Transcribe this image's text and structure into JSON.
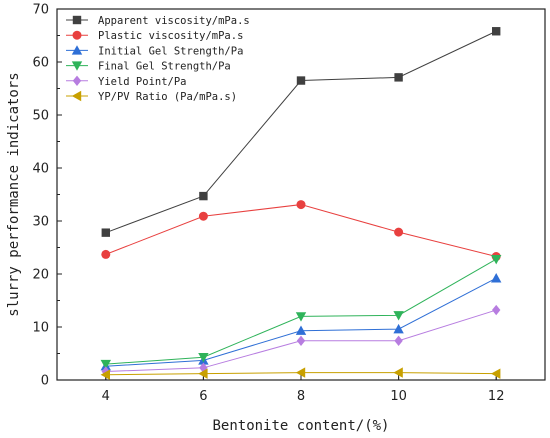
{
  "chart_data": {
    "type": "line",
    "xlabel": "Bentonite content/(%)",
    "ylabel": "slurry performance indicators",
    "x": [
      4,
      6,
      8,
      10,
      12
    ],
    "xlim": [
      3,
      13
    ],
    "ylim": [
      0,
      70
    ],
    "xticks": [
      "4",
      "6",
      "8",
      "10",
      "12"
    ],
    "yticks": [
      "0",
      "10",
      "20",
      "30",
      "40",
      "50",
      "60",
      "70"
    ],
    "grid": false,
    "legend_position": "top-left",
    "series": [
      {
        "name": "Apparent viscosity/mPa.s",
        "marker": "square",
        "color": "#404040",
        "values": [
          27.8,
          34.7,
          56.5,
          57.1,
          65.8
        ]
      },
      {
        "name": "Plastic viscosity/mPa.s",
        "marker": "circle",
        "color": "#e8403f",
        "values": [
          23.7,
          30.9,
          33.1,
          27.9,
          23.3
        ]
      },
      {
        "name": "Initial Gel Strength/Pa",
        "marker": "triangle-up",
        "color": "#2f6fd6",
        "values": [
          2.6,
          3.7,
          9.3,
          9.6,
          19.2
        ]
      },
      {
        "name": "Final Gel Strength/Pa",
        "marker": "triangle-down",
        "color": "#2fb35a",
        "values": [
          3.0,
          4.3,
          12.0,
          12.2,
          22.8
        ]
      },
      {
        "name": "Yield Point/Pa",
        "marker": "diamond",
        "color": "#b77de0",
        "values": [
          1.6,
          2.3,
          7.4,
          7.4,
          13.2
        ]
      },
      {
        "name": "YP/PV Ratio (Pa/mPa.s)",
        "marker": "triangle-left",
        "color": "#c8a000",
        "values": [
          1.0,
          1.2,
          1.4,
          1.4,
          1.2
        ]
      }
    ]
  }
}
